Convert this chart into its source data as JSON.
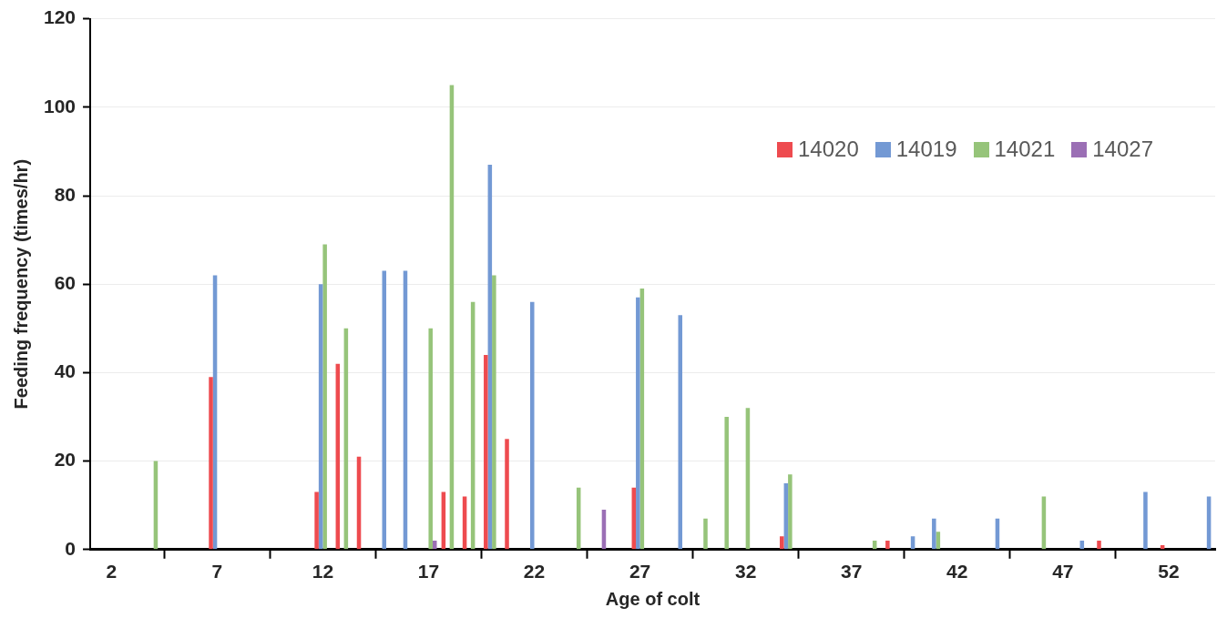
{
  "chart_data": {
    "type": "bar",
    "xlabel": "Age of colt",
    "ylabel": "Feeding frequency (times/hr)",
    "series": [
      {
        "name": "14020",
        "color": "#ee4b4f",
        "x": [
          7,
          12,
          13,
          14,
          18,
          19,
          20,
          21,
          27,
          34,
          39,
          49,
          52
        ],
        "values": [
          39,
          13,
          42,
          21,
          13,
          12,
          44,
          25,
          14,
          3,
          2,
          2,
          1
        ]
      },
      {
        "name": "14019",
        "color": "#7399d4",
        "x": [
          7,
          12,
          15,
          16,
          20,
          22,
          27,
          29,
          34,
          40,
          41,
          44,
          48,
          51,
          54
        ],
        "values": [
          62,
          60,
          63,
          63,
          87,
          56,
          57,
          53,
          15,
          3,
          7,
          7,
          2,
          13,
          12
        ]
      },
      {
        "name": "14021",
        "color": "#96c47a",
        "x": [
          4,
          12,
          13,
          17,
          18,
          19,
          20,
          24,
          27,
          30,
          31,
          32,
          34,
          38,
          41,
          46
        ],
        "values": [
          20,
          69,
          50,
          50,
          105,
          56,
          62,
          14,
          59,
          7,
          30,
          32,
          17,
          2,
          4,
          12
        ]
      },
      {
        "name": "14027",
        "color": "#9b6fb5",
        "x": [
          17,
          25
        ],
        "values": [
          2,
          9
        ]
      }
    ],
    "xlim": [
      1,
      54.2
    ],
    "xticks": [
      2,
      7,
      12,
      17,
      22,
      27,
      32,
      37,
      42,
      47,
      52
    ],
    "ylim": [
      0,
      120
    ],
    "yticks": [
      0,
      20,
      40,
      60,
      80,
      100,
      120
    ],
    "grid": "y",
    "legend": "top right"
  }
}
